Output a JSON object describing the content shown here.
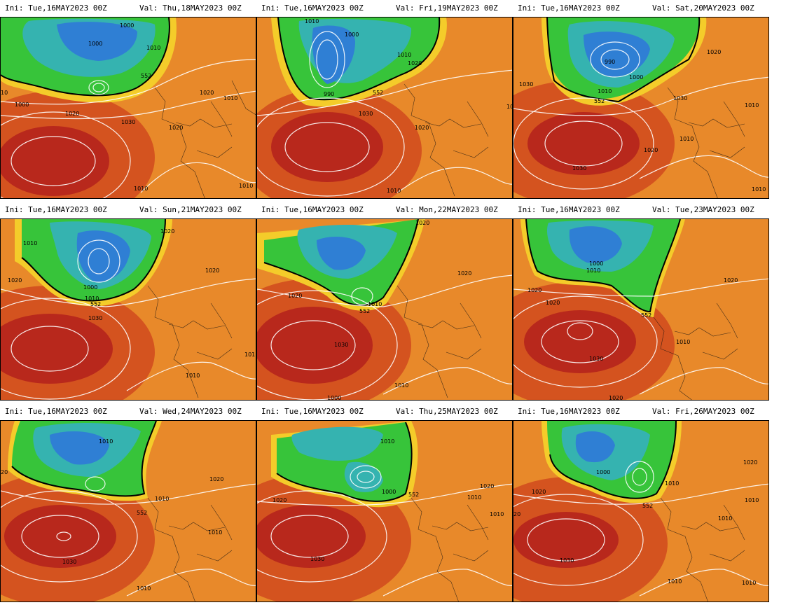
{
  "panels": [
    {
      "ini": "Ini: Tue,16MAY2023 00Z",
      "val": "Val: Thu,18MAY2023 00Z",
      "labels": [
        "1000",
        "1000",
        "1010",
        "552",
        "1020",
        "1010",
        "1000",
        "1020",
        "1030",
        "1020",
        "1010",
        "1010",
        "10"
      ]
    },
    {
      "ini": "Ini: Tue,16MAY2023 00Z",
      "val": "Val: Fri,19MAY2023 00Z",
      "labels": [
        "1010",
        "1000",
        "1010",
        "1020",
        "990",
        "552",
        "1030",
        "1020",
        "1010",
        "10"
      ]
    },
    {
      "ini": "Ini: Tue,16MAY2023 00Z",
      "val": "Val: Sat,20MAY2023 00Z",
      "labels": [
        "1020",
        "990",
        "1000",
        "1010",
        "552",
        "1030",
        "1030",
        "1010",
        "1020",
        "1010",
        "1030",
        "1010"
      ]
    },
    {
      "ini": "Ini: Tue,16MAY2023 00Z",
      "val": "Val: Sun,21MAY2023 00Z",
      "labels": [
        "1020",
        "1010",
        "1020",
        "1000",
        "1010",
        "552",
        "1030",
        "1020",
        "101",
        "1010"
      ]
    },
    {
      "ini": "Ini: Tue,16MAY2023 00Z",
      "val": "Val: Mon,22MAY2023 00Z",
      "labels": [
        "1020",
        "1020",
        "1020",
        "1010",
        "552",
        "1030",
        "1010",
        "1000"
      ]
    },
    {
      "ini": "Ini: Tue,16MAY2023 00Z",
      "val": "Val: Tue,23MAY2023 00Z",
      "labels": [
        "1000",
        "1010",
        "1020",
        "1020",
        "552",
        "1020",
        "1010",
        "1030",
        "1020"
      ]
    },
    {
      "ini": "Ini: Tue,16MAY2023 00Z",
      "val": "Val: Wed,24MAY2023 00Z",
      "labels": [
        "1010",
        "20",
        "1020",
        "1010",
        "552",
        "1010",
        "1030",
        "1010"
      ]
    },
    {
      "ini": "Ini: Tue,16MAY2023 00Z",
      "val": "Val: Thu,25MAY2023 00Z",
      "labels": [
        "1010",
        "1000",
        "552",
        "1020",
        "1010",
        "1020",
        "1010",
        "1030"
      ]
    },
    {
      "ini": "Ini: Tue,16MAY2023 00Z",
      "val": "Val: Fri,26MAY2023 00Z",
      "labels": [
        "1000",
        "1010",
        "1020",
        "20",
        "552",
        "1020",
        "1010",
        "1010",
        "1030",
        "1010",
        "1010"
      ]
    }
  ]
}
